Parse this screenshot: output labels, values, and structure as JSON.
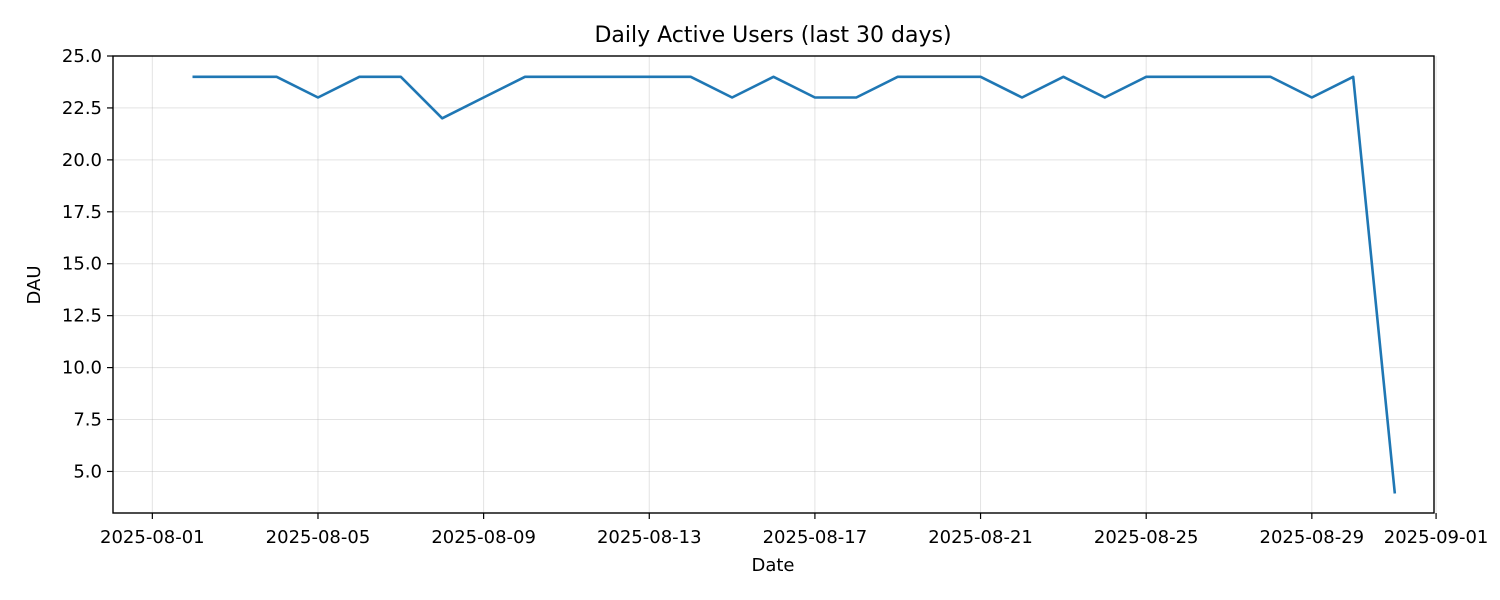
{
  "chart_data": {
    "type": "line",
    "title": "Daily Active Users (last 30 days)",
    "xlabel": "Date",
    "ylabel": "DAU",
    "grid": true,
    "legend": "none",
    "color": "#1f77b4",
    "x_start": "2025-08-02",
    "x_range_days": [
      -0.95,
      30.95
    ],
    "ylim": [
      3.0,
      25.0
    ],
    "x_ticks": [
      {
        "day": 0,
        "label": "2025-08-01"
      },
      {
        "day": 4,
        "label": "2025-08-05"
      },
      {
        "day": 8,
        "label": "2025-08-09"
      },
      {
        "day": 12,
        "label": "2025-08-13"
      },
      {
        "day": 16,
        "label": "2025-08-17"
      },
      {
        "day": 20,
        "label": "2025-08-21"
      },
      {
        "day": 24,
        "label": "2025-08-25"
      },
      {
        "day": 28,
        "label": "2025-08-29"
      },
      {
        "day": 31,
        "label": "2025-09-01"
      }
    ],
    "y_ticks": [
      {
        "value": 5.0,
        "label": "5.0"
      },
      {
        "value": 7.5,
        "label": "7.5"
      },
      {
        "value": 10.0,
        "label": "10.0"
      },
      {
        "value": 12.5,
        "label": "12.5"
      },
      {
        "value": 15.0,
        "label": "15.0"
      },
      {
        "value": 17.5,
        "label": "17.5"
      },
      {
        "value": 20.0,
        "label": "20.0"
      },
      {
        "value": 22.5,
        "label": "22.5"
      },
      {
        "value": 25.0,
        "label": "25.0"
      }
    ],
    "series": [
      {
        "name": "DAU",
        "x": [
          "2025-08-02",
          "2025-08-03",
          "2025-08-04",
          "2025-08-05",
          "2025-08-06",
          "2025-08-07",
          "2025-08-08",
          "2025-08-09",
          "2025-08-10",
          "2025-08-11",
          "2025-08-12",
          "2025-08-13",
          "2025-08-14",
          "2025-08-15",
          "2025-08-16",
          "2025-08-17",
          "2025-08-18",
          "2025-08-19",
          "2025-08-20",
          "2025-08-21",
          "2025-08-22",
          "2025-08-23",
          "2025-08-24",
          "2025-08-25",
          "2025-08-26",
          "2025-08-27",
          "2025-08-28",
          "2025-08-29",
          "2025-08-30",
          "2025-08-31"
        ],
        "values": [
          24,
          24,
          24,
          23,
          24,
          24,
          22,
          23,
          24,
          24,
          24,
          24,
          24,
          23,
          24,
          23,
          23,
          24,
          24,
          24,
          23,
          24,
          23,
          24,
          24,
          24,
          24,
          23,
          24,
          4
        ]
      }
    ]
  }
}
